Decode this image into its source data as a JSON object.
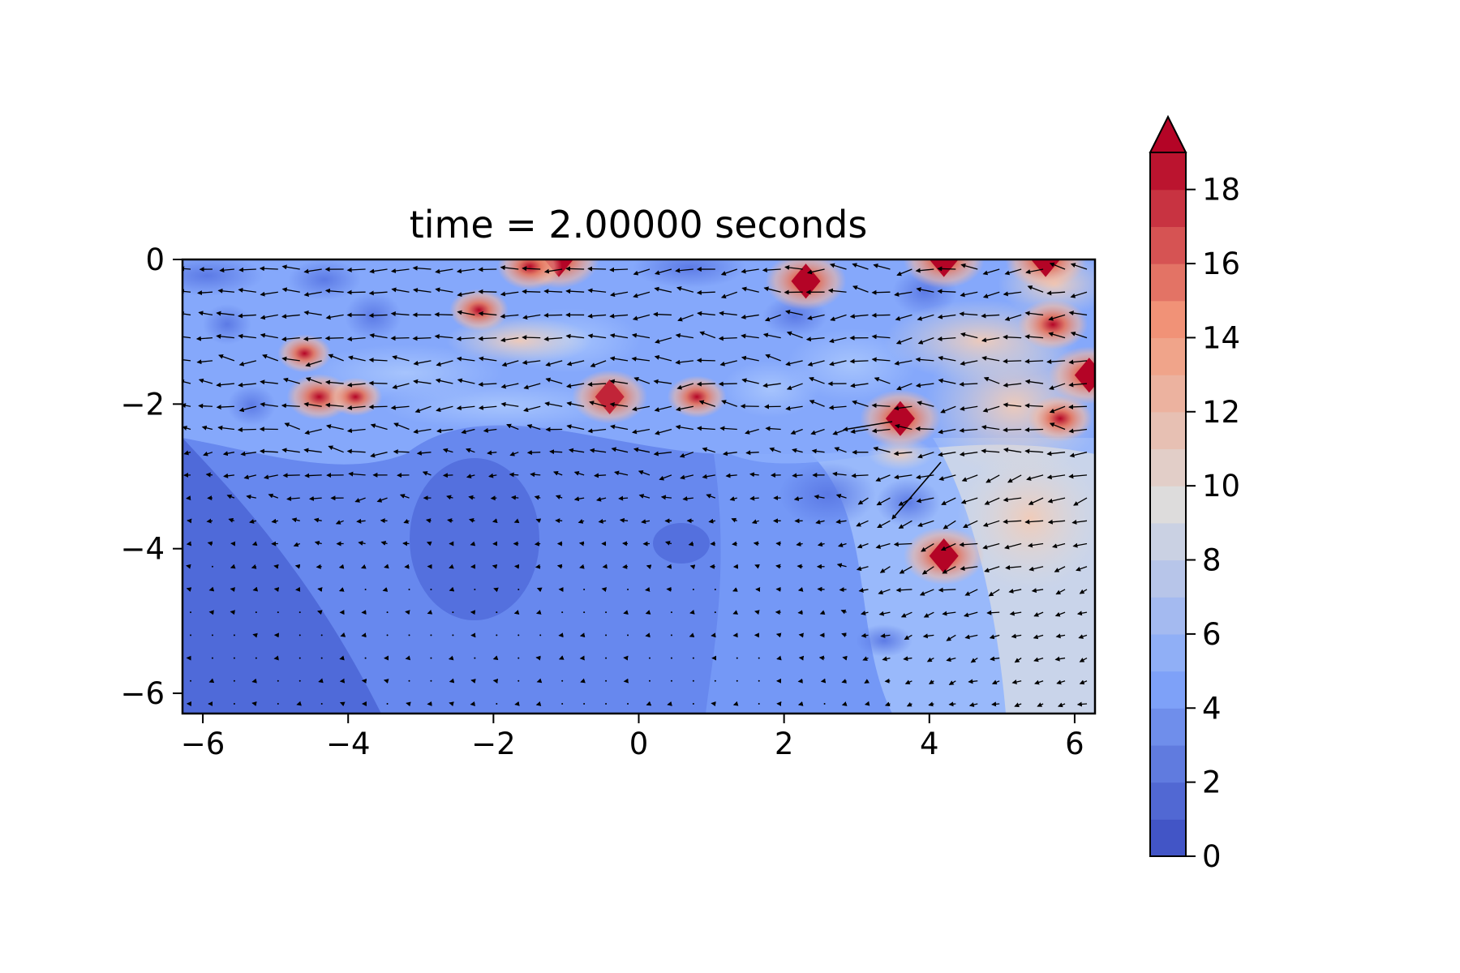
{
  "chart_data": {
    "type": "heatmap",
    "title": "time = 2.00000 seconds",
    "xlabel": "",
    "ylabel": "",
    "xlim": [
      -6.28,
      6.28
    ],
    "ylim": [
      -6.28,
      0
    ],
    "x_ticks": [
      "−6",
      "−4",
      "−2",
      "0",
      "2",
      "4",
      "6"
    ],
    "x_tick_values": [
      -6,
      -4,
      -2,
      0,
      2,
      4,
      6
    ],
    "y_ticks": [
      "0",
      "−2",
      "−4",
      "−6"
    ],
    "y_tick_values": [
      0,
      -2,
      -4,
      -6
    ],
    "colorbar": {
      "colormap": "coolwarm",
      "min": 0,
      "max": 19,
      "extend": "max",
      "levels": 20,
      "ticks": [
        "0",
        "2",
        "4",
        "6",
        "8",
        "10",
        "12",
        "14",
        "16",
        "18"
      ],
      "tick_values": [
        0,
        2,
        4,
        6,
        8,
        10,
        12,
        14,
        16,
        18
      ]
    },
    "grid": false,
    "overlay": "quiver vector field (velocity arrows)",
    "hotspots": [
      {
        "x": -4.4,
        "y": -1.9,
        "value": 16
      },
      {
        "x": -4.6,
        "y": -1.3,
        "value": 14
      },
      {
        "x": -3.9,
        "y": -1.9,
        "value": 14
      },
      {
        "x": -0.4,
        "y": -1.9,
        "value": 18
      },
      {
        "x": 0.8,
        "y": -1.9,
        "value": 15
      },
      {
        "x": 2.3,
        "y": -0.3,
        "value": 19
      },
      {
        "x": 3.6,
        "y": -2.2,
        "value": 19
      },
      {
        "x": 4.2,
        "y": -4.1,
        "value": 19
      },
      {
        "x": 4.2,
        "y": 0.0,
        "value": 19
      },
      {
        "x": -1.1,
        "y": 0.0,
        "value": 19
      },
      {
        "x": 5.6,
        "y": 0.0,
        "value": 19
      },
      {
        "x": 5.7,
        "y": -0.9,
        "value": 17
      },
      {
        "x": 6.2,
        "y": -1.6,
        "value": 19
      },
      {
        "x": 5.8,
        "y": -2.2,
        "value": 16
      },
      {
        "x": -2.2,
        "y": -0.7,
        "value": 15
      },
      {
        "x": -1.5,
        "y": -0.1,
        "value": 16
      }
    ]
  }
}
